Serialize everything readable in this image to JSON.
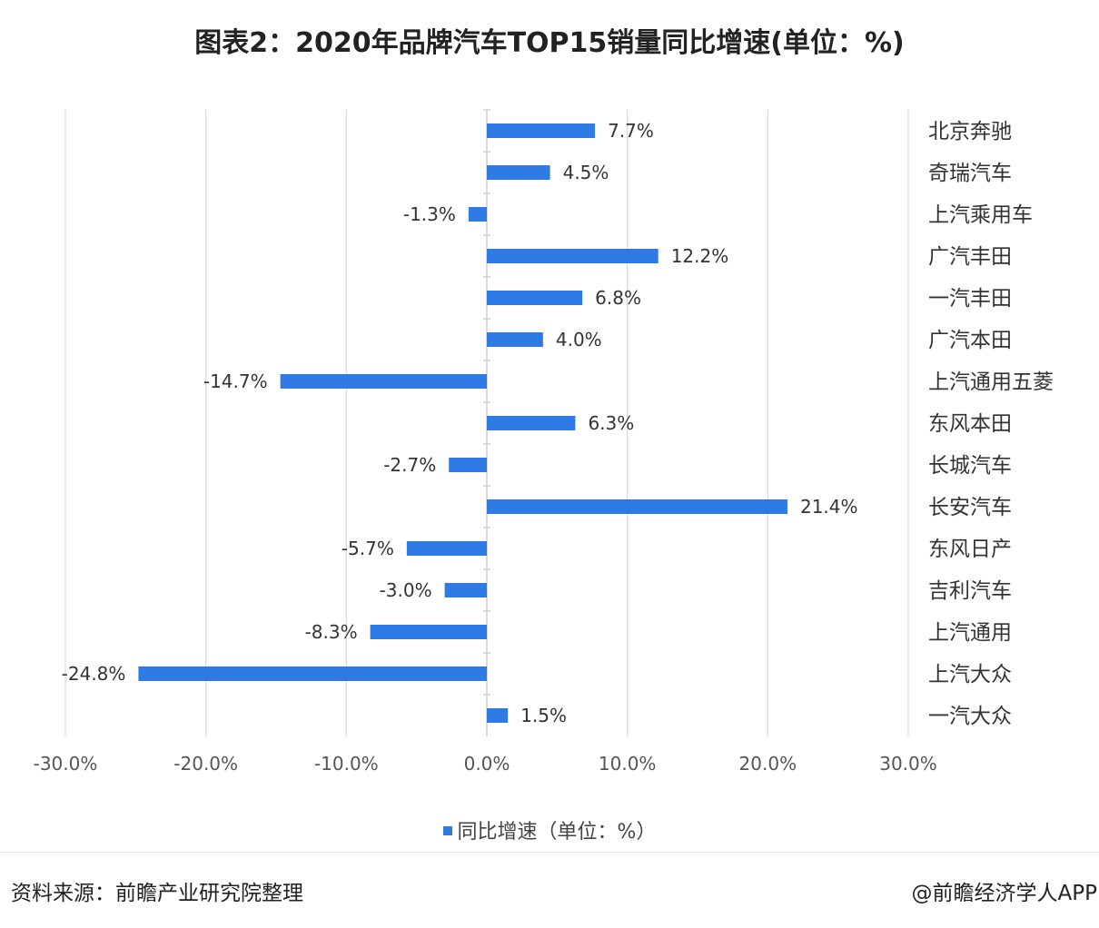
{
  "title": "图表2：2020年品牌汽车TOP15销量同比增速(单位：%)",
  "legend_label": "同比增速（单位：%）",
  "source": "资料来源：前瞻产业研究院整理",
  "credit": "@前瞻经济学人APP",
  "colors": {
    "bar": "#2f7ae5",
    "grid": "#d9d9d9",
    "text": "#333333"
  },
  "chart_data": {
    "type": "bar",
    "orientation": "horizontal",
    "categories": [
      "北京奔驰",
      "奇瑞汽车",
      "上汽乘用车",
      "广汽丰田",
      "一汽丰田",
      "广汽本田",
      "上汽通用五菱",
      "东风本田",
      "长城汽车",
      "长安汽车",
      "东风日产",
      "吉利汽车",
      "上汽通用",
      "上汽大众",
      "一汽大众"
    ],
    "series": [
      {
        "name": "同比增速（单位：%）",
        "values": [
          7.7,
          4.5,
          -1.3,
          12.2,
          6.8,
          4.0,
          -14.7,
          6.3,
          -2.7,
          21.4,
          -5.7,
          -3.0,
          -8.3,
          -24.8,
          1.5
        ]
      }
    ],
    "data_labels": [
      "7.7%",
      "4.5%",
      "-1.3%",
      "12.2%",
      "6.8%",
      "4.0%",
      "-14.7%",
      "6.3%",
      "-2.7%",
      "21.4%",
      "-5.7%",
      "-3.0%",
      "-8.3%",
      "-24.8%",
      "1.5%"
    ],
    "xlim": [
      -30,
      30
    ],
    "x_ticks": [
      -30,
      -20,
      -10,
      0,
      10,
      20,
      30
    ],
    "x_tick_labels": [
      "-30.0%",
      "-20.0%",
      "-10.0%",
      "0.0%",
      "10.0%",
      "20.0%",
      "30.0%"
    ],
    "category_labels_side": "right",
    "grid": true,
    "legend_position": "bottom"
  }
}
